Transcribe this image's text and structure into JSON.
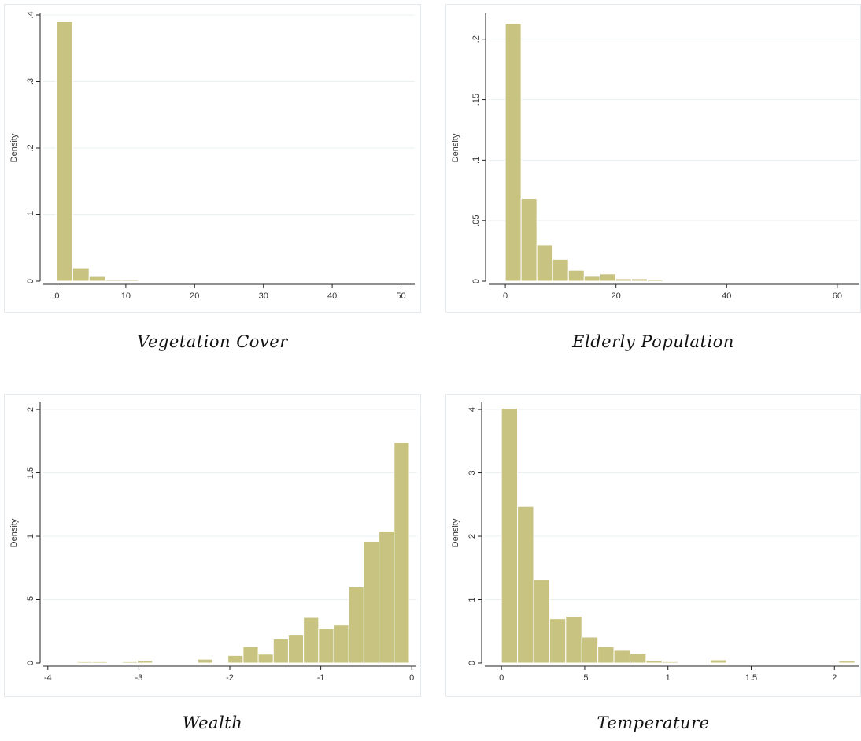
{
  "chart_data": [
    {
      "type": "bar",
      "caption": "Vegetation Cover",
      "ylabel": "Density",
      "xlabel": "",
      "bin_width": 2.38,
      "x_start": -0.1,
      "values": [
        0.39,
        0.02,
        0.007,
        0.002,
        0.002,
        0.001,
        0.001,
        0.001,
        0,
        0,
        0,
        0,
        0,
        0,
        0,
        0,
        0,
        0,
        0,
        0,
        0,
        0
      ],
      "xlim": [
        -2,
        52
      ],
      "ylim": [
        0,
        0.4
      ],
      "xticks": [
        {
          "v": 0,
          "l": "0"
        },
        {
          "v": 10,
          "l": "10"
        },
        {
          "v": 20,
          "l": "20"
        },
        {
          "v": 30,
          "l": "30"
        },
        {
          "v": 40,
          "l": "40"
        },
        {
          "v": 50,
          "l": "50"
        }
      ],
      "yticks": [
        {
          "v": 0,
          "l": "0"
        },
        {
          "v": 0.1,
          "l": ".1"
        },
        {
          "v": 0.2,
          "l": ".2"
        },
        {
          "v": 0.3,
          "l": ".3"
        },
        {
          "v": 0.4,
          "l": ".4"
        }
      ],
      "grid": true
    },
    {
      "type": "bar",
      "caption": "Elderly Population",
      "ylabel": "Density",
      "xlabel": "",
      "bin_width": 2.85,
      "x_start": 0,
      "values": [
        0.213,
        0.068,
        0.03,
        0.018,
        0.009,
        0.004,
        0.006,
        0.002,
        0.002,
        0.001,
        0.0005,
        0,
        0,
        0,
        0,
        0,
        0,
        0,
        0,
        0,
        0,
        0
      ],
      "xlim": [
        -3,
        64
      ],
      "ylim": [
        0,
        0.22
      ],
      "xticks": [
        {
          "v": 0,
          "l": "0"
        },
        {
          "v": 20,
          "l": "20"
        },
        {
          "v": 40,
          "l": "40"
        },
        {
          "v": 60,
          "l": "60"
        }
      ],
      "yticks": [
        {
          "v": 0,
          "l": "0"
        },
        {
          "v": 0.05,
          "l": ".05"
        },
        {
          "v": 0.1,
          "l": ".1"
        },
        {
          "v": 0.15,
          "l": ".15"
        },
        {
          "v": 0.2,
          "l": ".2"
        }
      ],
      "grid": true
    },
    {
      "type": "bar",
      "caption": "Wealth",
      "ylabel": "Density",
      "xlabel": "",
      "bin_width": 0.166,
      "x_start": -3.68,
      "values": [
        0.01,
        0.01,
        0,
        0.01,
        0.02,
        0,
        0,
        0,
        0.03,
        0,
        0.06,
        0.13,
        0.07,
        0.19,
        0.22,
        0.36,
        0.27,
        0.3,
        0.6,
        0.96,
        1.04,
        1.74
      ],
      "xlim": [
        -4.05,
        0.05
      ],
      "ylim": [
        0,
        2.05
      ],
      "xticks": [
        {
          "v": -4,
          "l": "-4"
        },
        {
          "v": -3,
          "l": "-3"
        },
        {
          "v": -2,
          "l": "-2"
        },
        {
          "v": -1,
          "l": "-1"
        },
        {
          "v": 0,
          "l": "0"
        }
      ],
      "yticks": [
        {
          "v": 0,
          "l": "0"
        },
        {
          "v": 0.5,
          "l": ".5"
        },
        {
          "v": 1,
          "l": "1"
        },
        {
          "v": 1.5,
          "l": "1.5"
        },
        {
          "v": 2,
          "l": "2"
        }
      ],
      "grid": true
    },
    {
      "type": "bar",
      "caption": "Temperature",
      "ylabel": "Density",
      "xlabel": "",
      "bin_width": 0.0965,
      "x_start": 0,
      "values": [
        4.02,
        2.47,
        1.32,
        0.7,
        0.74,
        0.41,
        0.26,
        0.2,
        0.15,
        0.04,
        0.02,
        0,
        0,
        0.05,
        0,
        0,
        0,
        0,
        0,
        0,
        0,
        0.03
      ],
      "xlim": [
        -0.1,
        2.15
      ],
      "ylim": [
        0,
        4.1
      ],
      "xticks": [
        {
          "v": 0,
          "l": "0"
        },
        {
          "v": 0.5,
          "l": ".5"
        },
        {
          "v": 1,
          "l": "1"
        },
        {
          "v": 1.5,
          "l": "1.5"
        },
        {
          "v": 2,
          "l": "2"
        }
      ],
      "yticks": [
        {
          "v": 0,
          "l": "0"
        },
        {
          "v": 1,
          "l": "1"
        },
        {
          "v": 2,
          "l": "2"
        },
        {
          "v": 3,
          "l": "3"
        },
        {
          "v": 4,
          "l": "4"
        }
      ],
      "grid": true
    }
  ],
  "style": {
    "bar_fill": "#c9c381",
    "bar_stroke": "#ffffff",
    "grid_color": "#eaf0f2",
    "frame_color": "#e4eaee",
    "axis_color": "#222222"
  }
}
